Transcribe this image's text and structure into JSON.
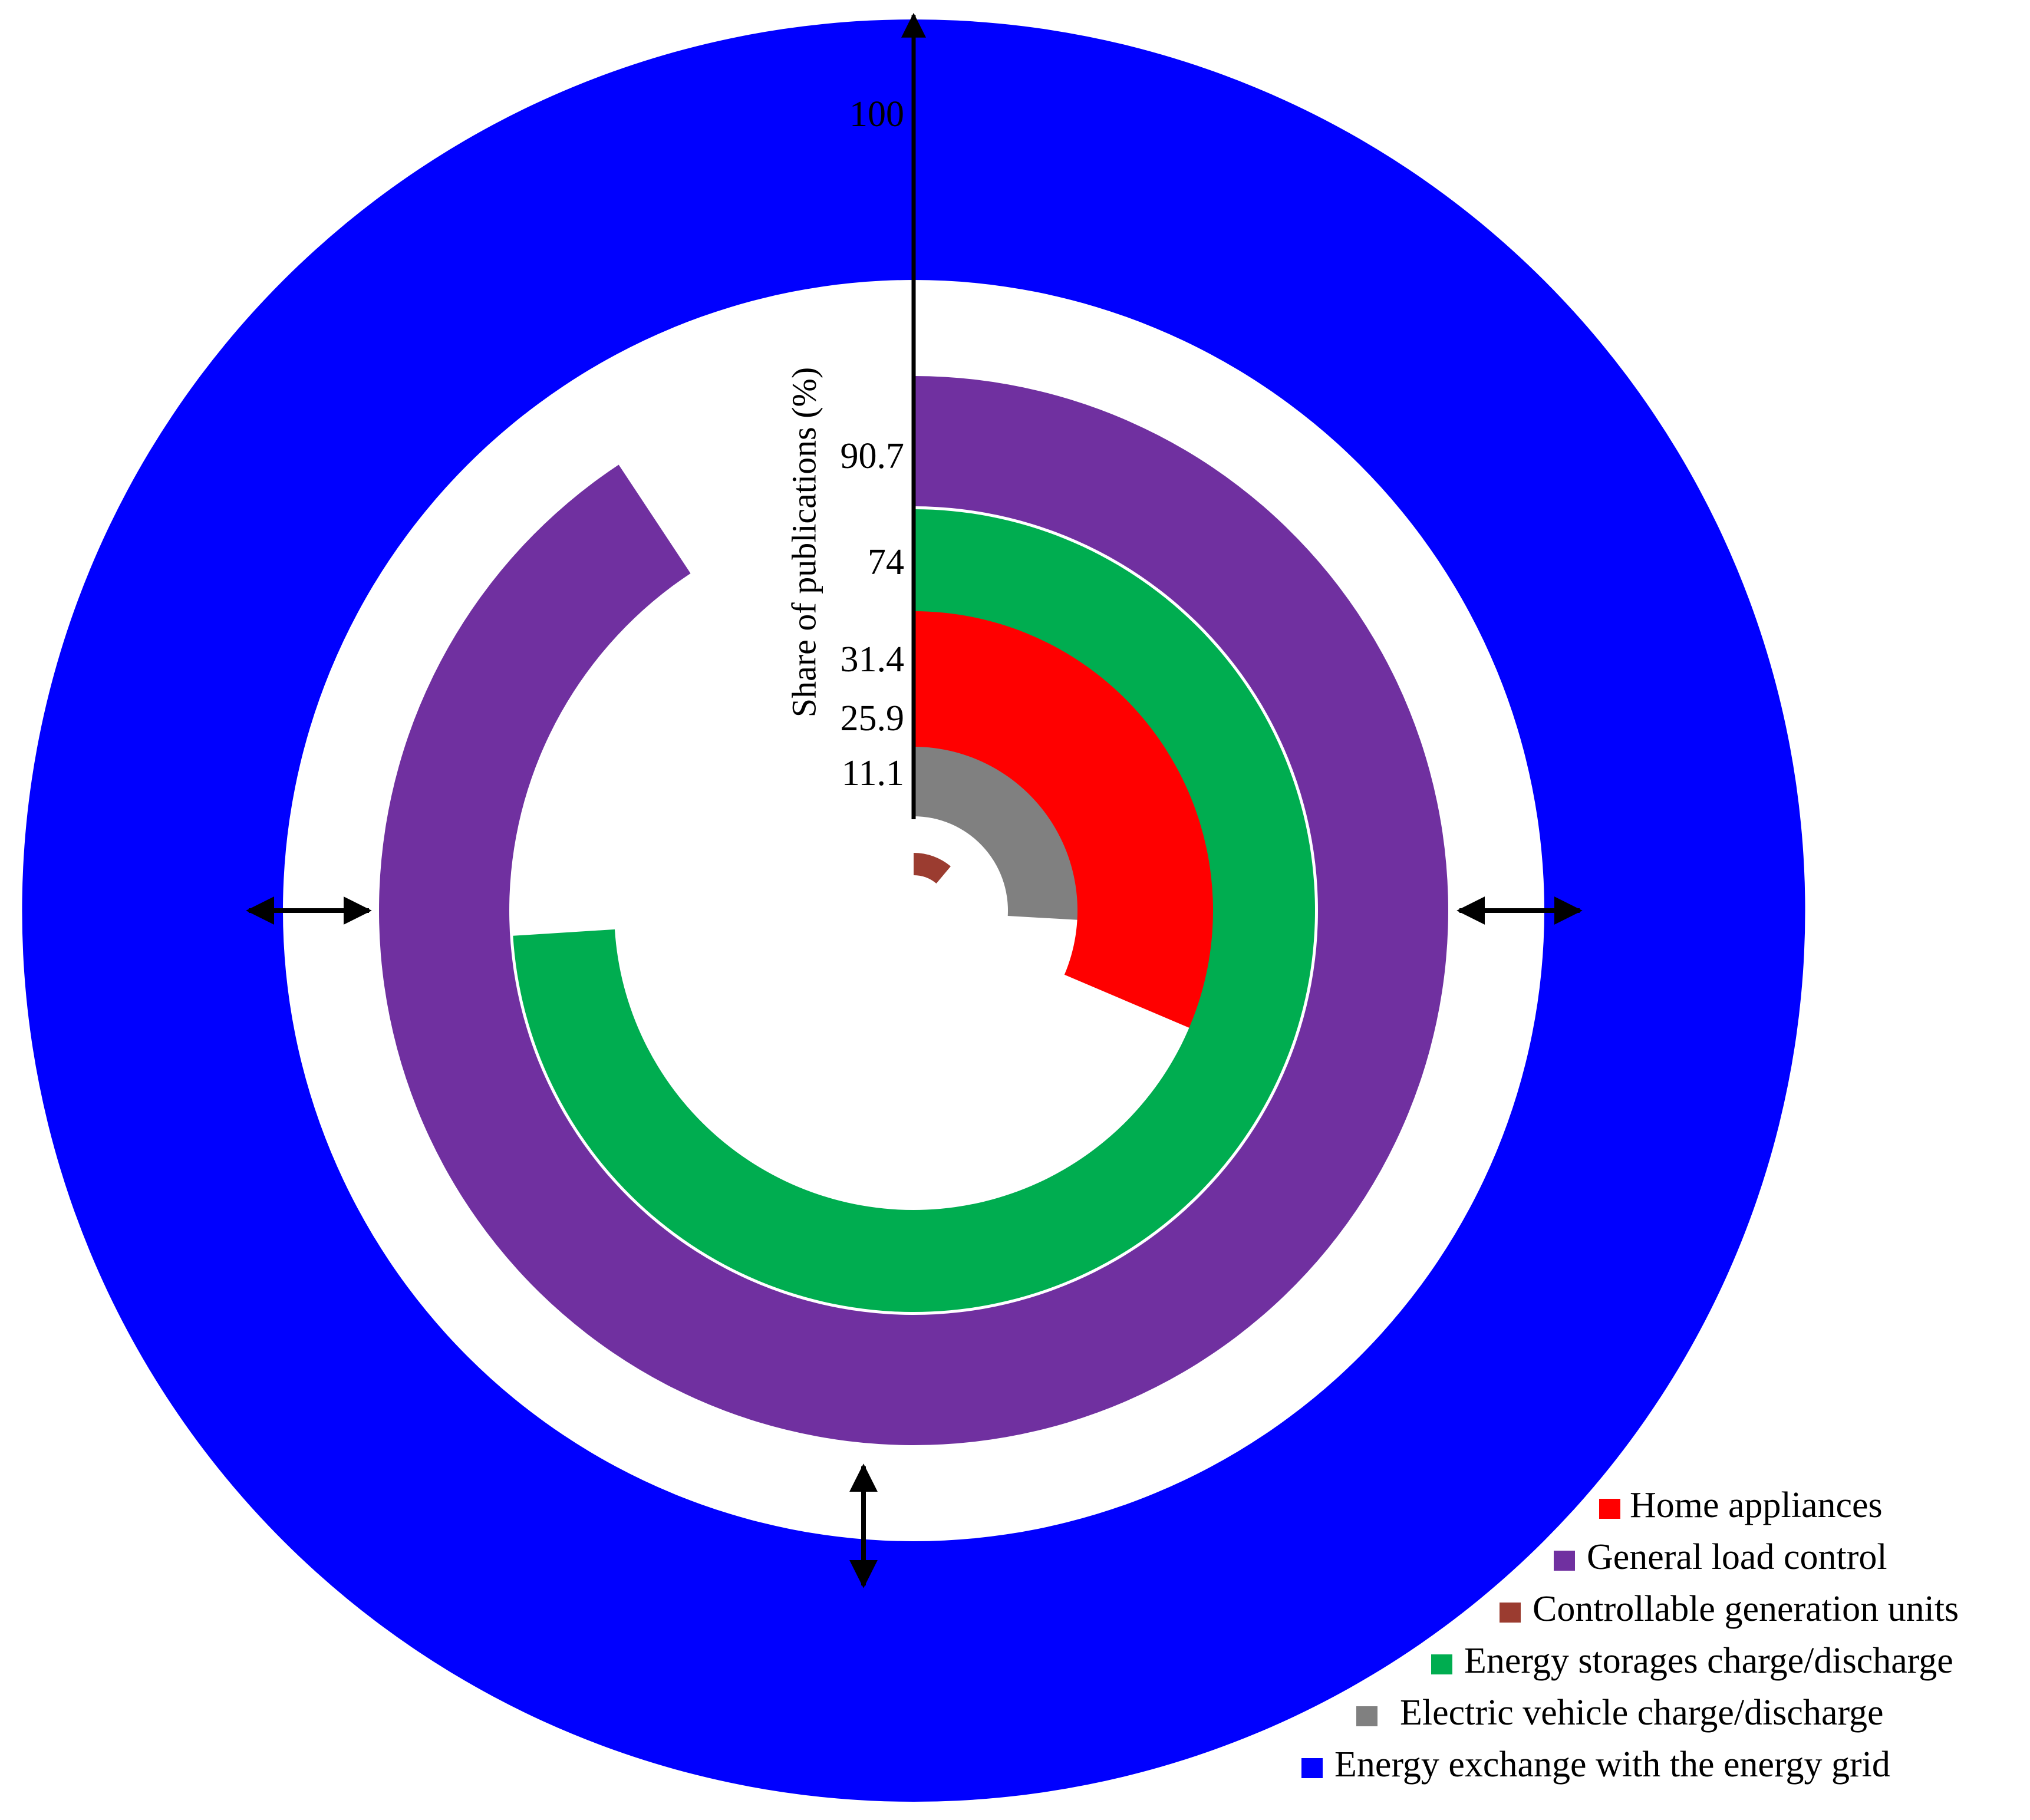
{
  "chart_data": {
    "type": "radial-bar",
    "ylabel": "Share of publications (%)",
    "rlim": [
      0,
      100
    ],
    "ticks": [
      "100",
      "90.7",
      "74",
      "31.4",
      "25.9",
      "11.1"
    ],
    "series": [
      {
        "name": "Controllable generation units",
        "value": 11.1,
        "color": "#9b3c30"
      },
      {
        "name": "Electric vehicle charge/discharge",
        "value": 25.9,
        "color": "#808080"
      },
      {
        "name": "Home appliances",
        "value": 31.4,
        "color": "#ff0000"
      },
      {
        "name": "Energy storages charge/discharge",
        "value": 74,
        "color": "#00ad50"
      },
      {
        "name": "General load control",
        "value": 90.7,
        "color": "#7030a0"
      },
      {
        "name": "Energy exchange with the energy grid",
        "value": 100,
        "color": "#0000ff"
      }
    ],
    "legend": {
      "position": "bottom-right",
      "order": [
        "Home appliances",
        "General load control",
        "Controllable generation units",
        "Energy storages charge/discharge",
        "Electric vehicle charge/discharge",
        "Energy exchange with the energy grid"
      ]
    }
  }
}
